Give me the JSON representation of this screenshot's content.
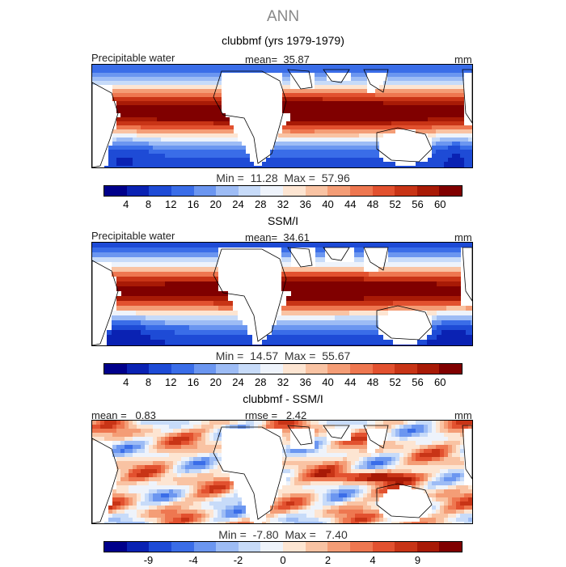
{
  "figure_title": "ANN",
  "colors": {
    "seq": [
      "#00008b",
      "#0a22b3",
      "#1e4bd6",
      "#3a6de8",
      "#6b96f0",
      "#9dbcf5",
      "#c7dbf9",
      "#eef3fb",
      "#fde5d2",
      "#f9c3a3",
      "#f49d76",
      "#ee7750",
      "#e2512f",
      "#c83416",
      "#a81a06",
      "#800000"
    ],
    "diff": [
      "#00008b",
      "#0a22b3",
      "#1e4bd6",
      "#3a6de8",
      "#6b96f0",
      "#9dbcf5",
      "#c7dbf9",
      "#eef3fb",
      "#fde5d2",
      "#f9c3a3",
      "#f49d76",
      "#ee7750",
      "#e2512f",
      "#c83416",
      "#a81a06",
      "#800000"
    ],
    "land": "#ffffff",
    "coast": "#000000"
  },
  "panels": [
    {
      "title": "clubbmf (yrs 1979-1979)",
      "left_label": "Precipitable water",
      "center_label": "mean=  35.87",
      "right_label": "mm",
      "minmax": "Min =  11.28  Max =  57.96",
      "ticks": [
        "4",
        "8",
        "12",
        "16",
        "20",
        "24",
        "28",
        "32",
        "36",
        "40",
        "44",
        "48",
        "52",
        "56",
        "60"
      ],
      "field": "model"
    },
    {
      "title": "SSM/I",
      "left_label": "Precipitable water",
      "center_label": "mean=  34.61",
      "right_label": "mm",
      "minmax": "Min =  14.57  Max =  55.67",
      "ticks": [
        "4",
        "8",
        "12",
        "16",
        "20",
        "24",
        "28",
        "32",
        "36",
        "40",
        "44",
        "48",
        "52",
        "56",
        "60"
      ],
      "field": "obs"
    },
    {
      "title": "clubbmf - SSM/I",
      "left_label": "mean =   0.83",
      "center_label": "rmse =   2.42",
      "right_label": "mm",
      "minmax": "Min =  -7.80  Max =   7.40",
      "ticks": [
        "-9",
        "-4",
        "-2",
        "0",
        "2",
        "4",
        "9"
      ],
      "field": "diff"
    }
  ]
}
